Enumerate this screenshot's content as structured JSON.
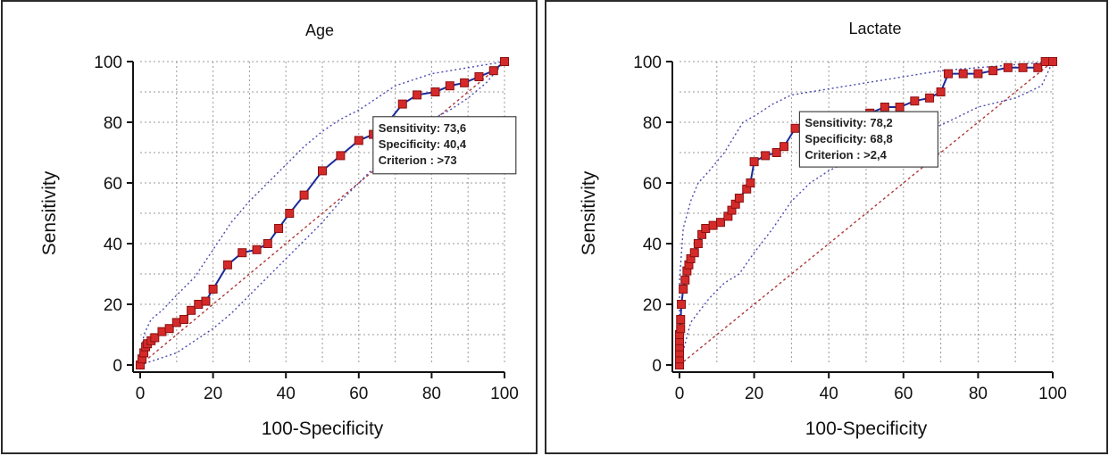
{
  "chart_data": [
    {
      "type": "line",
      "title": "Age",
      "xlabel": "100-Specificity",
      "ylabel": "Sensitivity",
      "xlim": [
        0,
        100
      ],
      "ylim": [
        0,
        100
      ],
      "xticks": [
        "0",
        "20",
        "40",
        "60",
        "80",
        "100"
      ],
      "yticks": [
        "0",
        "20",
        "40",
        "60",
        "80",
        "100"
      ],
      "grid": true,
      "colors": {
        "roc": "#1a2a9a",
        "marker": "#d42a2a",
        "diagonal": "#b03838",
        "ci": "#4a4ab0"
      },
      "annotation": [
        "Sensitivity: 73,6",
        "Specificity: 40,4",
        "Criterion : >73"
      ],
      "annotation_anchor": {
        "x": 60,
        "y": 73.6
      },
      "roc_points": [
        [
          0,
          0
        ],
        [
          0.5,
          2
        ],
        [
          1,
          4
        ],
        [
          1.5,
          6
        ],
        [
          2,
          7
        ],
        [
          3,
          8
        ],
        [
          4,
          9
        ],
        [
          6,
          11
        ],
        [
          8,
          12
        ],
        [
          10,
          14
        ],
        [
          12,
          15
        ],
        [
          14,
          18
        ],
        [
          16,
          20
        ],
        [
          18,
          21
        ],
        [
          20,
          25
        ],
        [
          24,
          33
        ],
        [
          28,
          37
        ],
        [
          32,
          38
        ],
        [
          35,
          40
        ],
        [
          38,
          45
        ],
        [
          41,
          50
        ],
        [
          45,
          56
        ],
        [
          50,
          64
        ],
        [
          55,
          69
        ],
        [
          60,
          74
        ],
        [
          64,
          76
        ],
        [
          68,
          80
        ],
        [
          72,
          86
        ],
        [
          76,
          89
        ],
        [
          81,
          90
        ],
        [
          85,
          92
        ],
        [
          89,
          93
        ],
        [
          93,
          95
        ],
        [
          97,
          97
        ],
        [
          100,
          100
        ]
      ],
      "ci_upper": [
        [
          0,
          0
        ],
        [
          1,
          10
        ],
        [
          3,
          15
        ],
        [
          6,
          18
        ],
        [
          10,
          23
        ],
        [
          15,
          29
        ],
        [
          20,
          38
        ],
        [
          25,
          47
        ],
        [
          30,
          54
        ],
        [
          35,
          60
        ],
        [
          40,
          66
        ],
        [
          45,
          72
        ],
        [
          50,
          77
        ],
        [
          55,
          81
        ],
        [
          60,
          84
        ],
        [
          65,
          88
        ],
        [
          70,
          92
        ],
        [
          75,
          94
        ],
        [
          80,
          96
        ],
        [
          85,
          97
        ],
        [
          90,
          98
        ],
        [
          95,
          99
        ],
        [
          100,
          100
        ]
      ],
      "ci_lower": [
        [
          0,
          0
        ],
        [
          5,
          2
        ],
        [
          10,
          4
        ],
        [
          15,
          8
        ],
        [
          20,
          12
        ],
        [
          25,
          17
        ],
        [
          30,
          23
        ],
        [
          35,
          29
        ],
        [
          40,
          35
        ],
        [
          45,
          41
        ],
        [
          50,
          47
        ],
        [
          55,
          54
        ],
        [
          60,
          60
        ],
        [
          65,
          66
        ],
        [
          70,
          71
        ],
        [
          75,
          76
        ],
        [
          80,
          81
        ],
        [
          85,
          84
        ],
        [
          90,
          88
        ],
        [
          95,
          93
        ],
        [
          100,
          100
        ]
      ]
    },
    {
      "type": "line",
      "title": "Lactate",
      "xlabel": "100-Specificity",
      "ylabel": "Sensitivity",
      "xlim": [
        0,
        100
      ],
      "ylim": [
        0,
        100
      ],
      "xticks": [
        "0",
        "20",
        "40",
        "60",
        "80",
        "100"
      ],
      "yticks": [
        "0",
        "20",
        "40",
        "60",
        "80",
        "100"
      ],
      "grid": true,
      "colors": {
        "roc": "#1a2a9a",
        "marker": "#d42a2a",
        "diagonal": "#b03838",
        "ci": "#4a4ab0"
      },
      "annotation": [
        "Sensitivity: 78,2",
        "Specificity: 68,8",
        "Criterion : >2,4"
      ],
      "annotation_anchor": {
        "x": 31.2,
        "y": 78.2
      },
      "roc_points": [
        [
          0,
          0
        ],
        [
          0,
          2
        ],
        [
          0,
          4
        ],
        [
          0,
          6
        ],
        [
          0,
          8
        ],
        [
          0,
          10
        ],
        [
          0.3,
          12
        ],
        [
          0.3,
          15
        ],
        [
          0.5,
          20
        ],
        [
          1,
          25
        ],
        [
          1.5,
          28
        ],
        [
          2,
          31
        ],
        [
          2.5,
          33
        ],
        [
          3,
          35
        ],
        [
          4,
          37
        ],
        [
          5,
          40
        ],
        [
          6,
          43
        ],
        [
          7,
          45
        ],
        [
          9,
          46
        ],
        [
          11,
          47
        ],
        [
          13,
          49
        ],
        [
          14,
          51
        ],
        [
          15,
          53
        ],
        [
          16,
          55
        ],
        [
          18,
          58
        ],
        [
          19,
          60
        ],
        [
          20,
          67
        ],
        [
          23,
          69
        ],
        [
          26,
          70
        ],
        [
          28,
          72
        ],
        [
          31,
          78
        ],
        [
          34,
          79
        ],
        [
          38,
          80
        ],
        [
          42,
          82
        ],
        [
          46,
          82
        ],
        [
          51,
          83
        ],
        [
          55,
          85
        ],
        [
          59,
          85
        ],
        [
          63,
          87
        ],
        [
          67,
          88
        ],
        [
          70,
          90
        ],
        [
          72,
          96
        ],
        [
          76,
          96
        ],
        [
          80,
          96
        ],
        [
          84,
          97
        ],
        [
          88,
          98
        ],
        [
          92,
          98
        ],
        [
          96,
          98
        ],
        [
          98,
          100
        ],
        [
          100,
          100
        ]
      ],
      "ci_upper": [
        [
          0,
          0
        ],
        [
          0,
          28
        ],
        [
          1,
          45
        ],
        [
          3,
          54
        ],
        [
          5,
          60
        ],
        [
          8,
          64
        ],
        [
          12,
          70
        ],
        [
          15,
          76
        ],
        [
          17,
          80
        ],
        [
          20,
          82
        ],
        [
          25,
          86
        ],
        [
          30,
          89
        ],
        [
          40,
          91
        ],
        [
          50,
          93
        ],
        [
          60,
          95
        ],
        [
          70,
          97
        ],
        [
          80,
          98
        ],
        [
          90,
          99
        ],
        [
          100,
          100
        ]
      ],
      "ci_lower": [
        [
          0,
          0
        ],
        [
          3,
          14
        ],
        [
          8,
          22
        ],
        [
          12,
          27
        ],
        [
          16,
          30
        ],
        [
          20,
          37
        ],
        [
          25,
          45
        ],
        [
          30,
          54
        ],
        [
          35,
          60
        ],
        [
          40,
          64
        ],
        [
          50,
          70
        ],
        [
          60,
          75
        ],
        [
          70,
          79
        ],
        [
          80,
          85
        ],
        [
          90,
          88
        ],
        [
          97,
          92
        ],
        [
          100,
          100
        ]
      ]
    }
  ]
}
